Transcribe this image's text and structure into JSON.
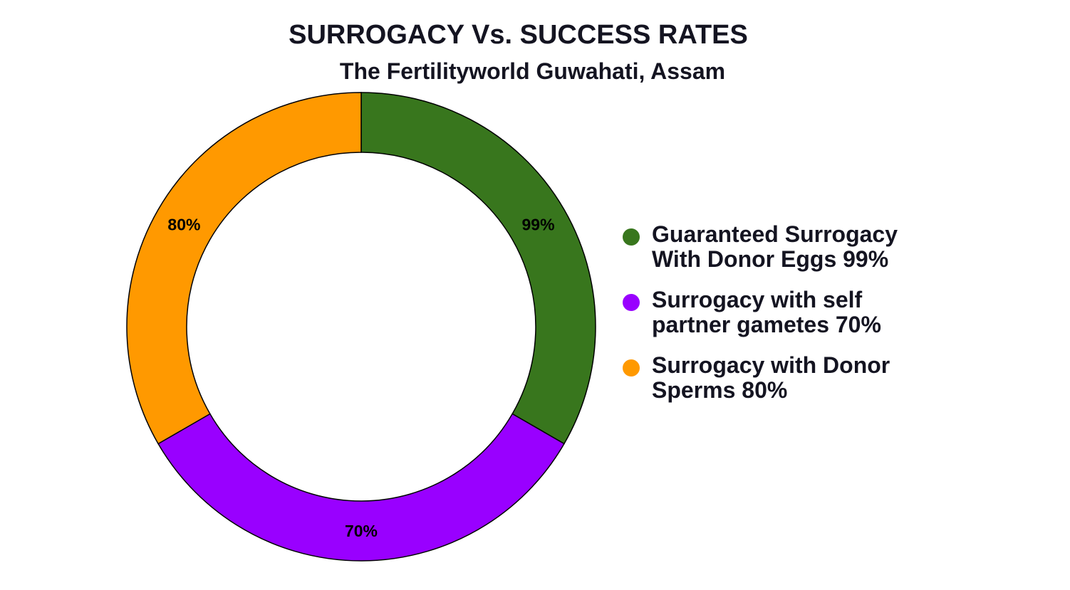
{
  "chart_data": {
    "type": "pie",
    "variant": "donut",
    "title": "SURROGACY Vs. SUCCESS RATES",
    "subtitle": "The Fertilityworld  Guwahati, Assam",
    "slices": [
      {
        "name": "Guaranteed Surrogacy With Donor Eggs 99%",
        "legend_lines": "Guaranteed Surrogacy\nWith Donor Eggs 99%",
        "value": 99,
        "data_label": "99%",
        "slice_weight": 1,
        "color": "#38761d"
      },
      {
        "name": "Surrogacy with self partner gametes 70%",
        "legend_lines": "Surrogacy with self\npartner gametes 70%",
        "value": 70,
        "data_label": "70%",
        "slice_weight": 1,
        "color": "#9900ff"
      },
      {
        "name": "Surrogacy with Donor Sperms  80%",
        "legend_lines": "Surrogacy with Donor\nSperms  80%",
        "value": 80,
        "data_label": "80%",
        "slice_weight": 1,
        "color": "#ff9900"
      }
    ],
    "legend_position": "right"
  }
}
